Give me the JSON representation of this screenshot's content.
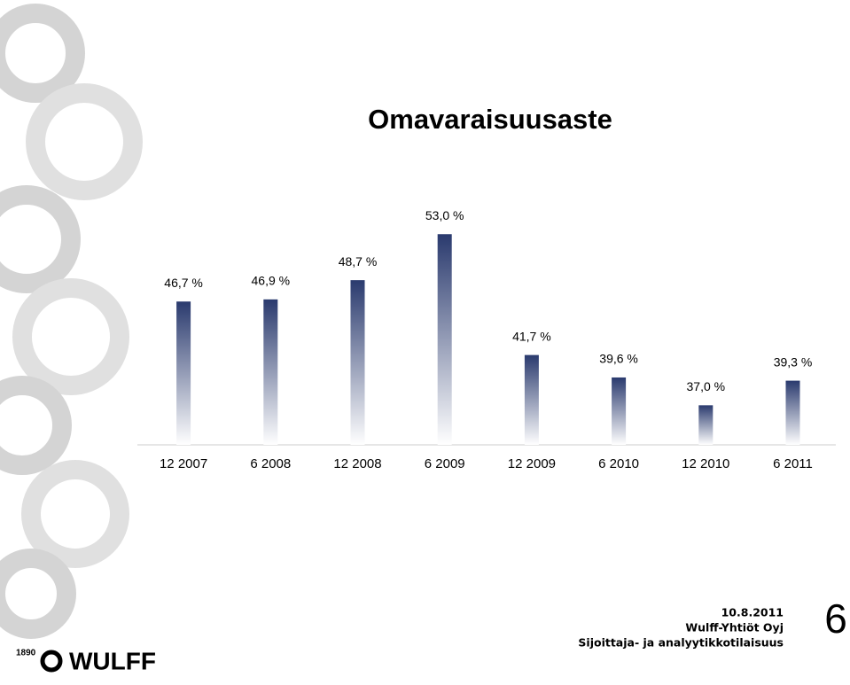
{
  "chart_data": {
    "type": "bar",
    "title": "Omavaraisuusaste",
    "categories": [
      "12 2007",
      "6 2008",
      "12 2008",
      "6 2009",
      "12 2009",
      "6 2010",
      "12 2010",
      "6 2011"
    ],
    "values": [
      46.7,
      46.9,
      48.7,
      53.0,
      41.7,
      39.6,
      37.0,
      39.3
    ],
    "value_labels": [
      "46,7 %",
      "46,9 %",
      "48,7 %",
      "53,0 %",
      "41,7 %",
      "39,6 %",
      "37,0 %",
      "39,3 %"
    ],
    "color": "#2a3a6e",
    "ylim": [
      33.3,
      56.5
    ]
  },
  "footer": {
    "date": "10.8.2011",
    "company": "Wulff-Yhtiöt Oyj",
    "event": "Sijoittaja- ja analyytikkotilaisuus",
    "page": "6"
  },
  "logo": {
    "year": "1890",
    "name": "WULFF"
  }
}
